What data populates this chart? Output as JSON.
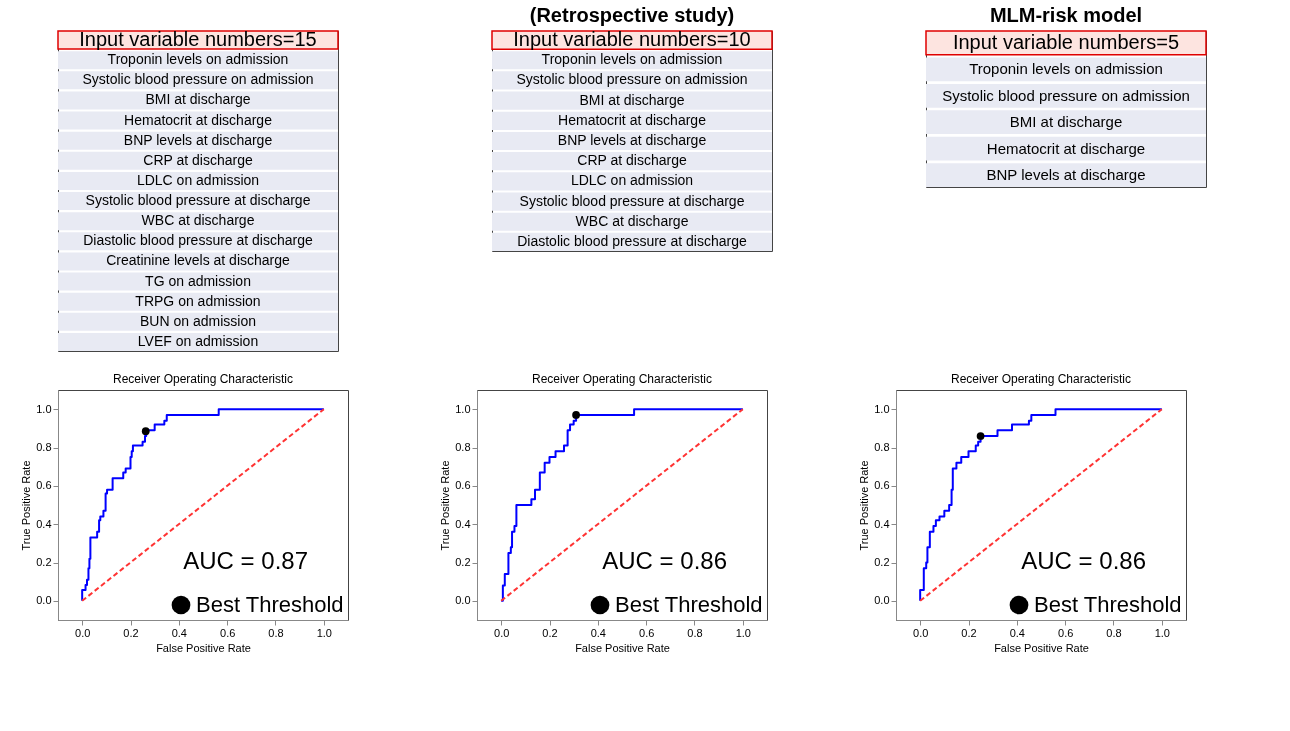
{
  "chart_data": [
    {
      "type": "other",
      "title": "Input variable numbers=15",
      "annotations": [
        "Troponin levels on admission",
        "Systolic blood pressure on admission",
        "BMI at discharge",
        "Hematocrit at discharge",
        "BNP levels at discharge",
        "CRP at discharge",
        "LDLC on admission",
        "Systolic blood pressure at discharge",
        "WBC at discharge",
        "Diastolic blood pressure at discharge",
        "Creatinine levels at discharge",
        "TG on admission",
        "TRPG on admission",
        "BUN on admission",
        "LVEF on admission"
      ]
    },
    {
      "type": "other",
      "subtitle": "(Retrospective study)",
      "title": "Input variable numbers=10",
      "annotations": [
        "Troponin levels on admission",
        "Systolic blood pressure on admission",
        "BMI at discharge",
        "Hematocrit at discharge",
        "BNP levels at discharge",
        "CRP at discharge",
        "LDLC on admission",
        "Systolic blood pressure at discharge",
        "WBC at discharge",
        "Diastolic blood pressure at discharge"
      ]
    },
    {
      "type": "other",
      "subtitle": "MLM-risk model",
      "title": "Input variable numbers=5",
      "annotations": [
        "Troponin levels on admission",
        "Systolic blood pressure on admission",
        "BMI at discharge",
        "Hematocrit at discharge",
        "BNP levels at discharge"
      ]
    },
    {
      "type": "line",
      "title": "Receiver Operating Characteristic",
      "xlabel": "False Positive Rate",
      "ylabel": "True Positive Rate",
      "xlim": [
        -0.1,
        1.1
      ],
      "ylim": [
        -0.1,
        1.1
      ],
      "xticks": [
        {
          "value": 0,
          "label": "0.0"
        },
        {
          "value": 0.2,
          "label": "0.2"
        },
        {
          "value": 0.4,
          "label": "0.4"
        },
        {
          "value": 0.6,
          "label": "0.6"
        },
        {
          "value": 0.8,
          "label": "0.8"
        },
        {
          "value": 1,
          "label": "1.0"
        }
      ],
      "yticks": [
        {
          "value": 0,
          "label": "0.0"
        },
        {
          "value": 0.2,
          "label": "0.2"
        },
        {
          "value": 0.4,
          "label": "0.4"
        },
        {
          "value": 0.6,
          "label": "0.6"
        },
        {
          "value": 0.8,
          "label": "0.8"
        },
        {
          "value": 1,
          "label": "1.0"
        }
      ],
      "legend": "bottom right",
      "annotations": [
        "AUC = 0.87"
      ],
      "series": [
        {
          "type": "line",
          "color": "#0000ff",
          "line_style": "solid",
          "marker": "none",
          "x": [
            0,
            0,
            0.014,
            0.014,
            0.02,
            0.02,
            0.026,
            0.026,
            0.03,
            0.03,
            0.034,
            0.034,
            0.062,
            0.062,
            0.07,
            0.07,
            0.075,
            0.075,
            0.088,
            0.088,
            0.097,
            0.097,
            0.103,
            0.103,
            0.126,
            0.126,
            0.17,
            0.17,
            0.18,
            0.18,
            0.2,
            0.2,
            0.205,
            0.205,
            0.21,
            0.21,
            0.25,
            0.25,
            0.26,
            0.26,
            0.265,
            0.265,
            0.3,
            0.3,
            0.34,
            0.34,
            0.35,
            0.35,
            0.565,
            0.565,
            1
          ],
          "values": [
            0,
            0.056,
            0.056,
            0.083,
            0.083,
            0.11,
            0.11,
            0.17,
            0.17,
            0.22,
            0.22,
            0.33,
            0.33,
            0.36,
            0.36,
            0.42,
            0.42,
            0.44,
            0.44,
            0.47,
            0.47,
            0.56,
            0.56,
            0.58,
            0.58,
            0.64,
            0.64,
            0.67,
            0.67,
            0.69,
            0.69,
            0.75,
            0.75,
            0.78,
            0.78,
            0.81,
            0.81,
            0.83,
            0.83,
            0.86,
            0.86,
            0.89,
            0.89,
            0.92,
            0.92,
            0.94,
            0.94,
            0.97,
            0.97,
            1,
            1
          ]
        },
        {
          "type": "line",
          "color": "#ff3333",
          "line_style": "dashed",
          "marker": "none",
          "x": [
            0,
            1
          ],
          "values": [
            0,
            1
          ]
        },
        {
          "type": "scatter",
          "name": "Best Threshold",
          "color": "#000000",
          "marker": "circle",
          "x": [
            0.263
          ],
          "values": [
            0.885
          ]
        }
      ]
    },
    {
      "type": "line",
      "title": "Receiver Operating Characteristic",
      "xlabel": "False Positive Rate",
      "ylabel": "True Positive Rate",
      "xlim": [
        -0.1,
        1.1
      ],
      "ylim": [
        -0.1,
        1.1
      ],
      "xticks": [
        {
          "value": 0,
          "label": "0.0"
        },
        {
          "value": 0.2,
          "label": "0.2"
        },
        {
          "value": 0.4,
          "label": "0.4"
        },
        {
          "value": 0.6,
          "label": "0.6"
        },
        {
          "value": 0.8,
          "label": "0.8"
        },
        {
          "value": 1,
          "label": "1.0"
        }
      ],
      "yticks": [
        {
          "value": 0,
          "label": "0.0"
        },
        {
          "value": 0.2,
          "label": "0.2"
        },
        {
          "value": 0.4,
          "label": "0.4"
        },
        {
          "value": 0.6,
          "label": "0.6"
        },
        {
          "value": 0.8,
          "label": "0.8"
        },
        {
          "value": 1,
          "label": "1.0"
        }
      ],
      "legend": "bottom right",
      "annotations": [
        "AUC = 0.86"
      ],
      "series": [
        {
          "type": "line",
          "color": "#0000ff",
          "line_style": "solid",
          "marker": "none",
          "x": [
            0,
            0.007,
            0.007,
            0.015,
            0.015,
            0.03,
            0.03,
            0.04,
            0.04,
            0.045,
            0.045,
            0.055,
            0.055,
            0.063,
            0.063,
            0.125,
            0.125,
            0.14,
            0.14,
            0.16,
            0.16,
            0.18,
            0.18,
            0.2,
            0.2,
            0.225,
            0.225,
            0.26,
            0.26,
            0.275,
            0.275,
            0.285,
            0.285,
            0.3,
            0.3,
            0.31,
            0.31,
            0.55,
            0.55,
            1
          ],
          "values": [
            0,
            0,
            0.08,
            0.08,
            0.14,
            0.14,
            0.25,
            0.25,
            0.28,
            0.28,
            0.36,
            0.36,
            0.39,
            0.39,
            0.5,
            0.5,
            0.53,
            0.53,
            0.58,
            0.58,
            0.67,
            0.67,
            0.72,
            0.72,
            0.75,
            0.75,
            0.78,
            0.78,
            0.81,
            0.81,
            0.89,
            0.89,
            0.92,
            0.92,
            0.94,
            0.94,
            0.97,
            0.97,
            1,
            1
          ]
        },
        {
          "type": "line",
          "color": "#ff3333",
          "line_style": "dashed",
          "marker": "none",
          "x": [
            0,
            1
          ],
          "values": [
            0,
            1
          ]
        },
        {
          "type": "scatter",
          "name": "Best Threshold",
          "color": "#000000",
          "marker": "circle",
          "x": [
            0.31
          ],
          "values": [
            0.97
          ]
        }
      ]
    },
    {
      "type": "line",
      "title": "Receiver Operating Characteristic",
      "xlabel": "False Positive Rate",
      "ylabel": "True Positive Rate",
      "xlim": [
        -0.1,
        1.1
      ],
      "ylim": [
        -0.1,
        1.1
      ],
      "xticks": [
        {
          "value": 0,
          "label": "0.0"
        },
        {
          "value": 0.2,
          "label": "0.2"
        },
        {
          "value": 0.4,
          "label": "0.4"
        },
        {
          "value": 0.6,
          "label": "0.6"
        },
        {
          "value": 0.8,
          "label": "0.8"
        },
        {
          "value": 1,
          "label": "1.0"
        }
      ],
      "yticks": [
        {
          "value": 0,
          "label": "0.0"
        },
        {
          "value": 0.2,
          "label": "0.2"
        },
        {
          "value": 0.4,
          "label": "0.4"
        },
        {
          "value": 0.6,
          "label": "0.6"
        },
        {
          "value": 0.8,
          "label": "0.8"
        },
        {
          "value": 1,
          "label": "1.0"
        }
      ],
      "legend": "bottom right",
      "annotations": [
        "AUC = 0.86"
      ],
      "series": [
        {
          "type": "line",
          "color": "#0000ff",
          "line_style": "solid",
          "marker": "none",
          "x": [
            0,
            0,
            0.015,
            0.015,
            0.025,
            0.025,
            0.03,
            0.03,
            0.04,
            0.04,
            0.055,
            0.055,
            0.065,
            0.065,
            0.08,
            0.08,
            0.1,
            0.1,
            0.12,
            0.12,
            0.13,
            0.13,
            0.135,
            0.135,
            0.15,
            0.15,
            0.17,
            0.17,
            0.2,
            0.2,
            0.23,
            0.23,
            0.24,
            0.24,
            0.25,
            0.25,
            0.32,
            0.32,
            0.38,
            0.38,
            0.45,
            0.45,
            0.46,
            0.46,
            0.56,
            0.56,
            1
          ],
          "values": [
            0,
            0.056,
            0.056,
            0.17,
            0.17,
            0.2,
            0.2,
            0.28,
            0.28,
            0.36,
            0.36,
            0.39,
            0.39,
            0.42,
            0.42,
            0.44,
            0.44,
            0.47,
            0.47,
            0.5,
            0.5,
            0.58,
            0.58,
            0.69,
            0.69,
            0.72,
            0.72,
            0.75,
            0.75,
            0.78,
            0.78,
            0.81,
            0.81,
            0.83,
            0.83,
            0.86,
            0.86,
            0.89,
            0.89,
            0.92,
            0.92,
            0.94,
            0.94,
            0.97,
            0.97,
            1,
            1
          ]
        },
        {
          "type": "line",
          "color": "#ff3333",
          "line_style": "dashed",
          "marker": "none",
          "x": [
            0,
            1
          ],
          "values": [
            0,
            1
          ]
        },
        {
          "type": "scatter",
          "name": "Best Threshold",
          "color": "#000000",
          "marker": "circle",
          "x": [
            0.25
          ],
          "values": [
            0.86
          ]
        }
      ]
    }
  ]
}
